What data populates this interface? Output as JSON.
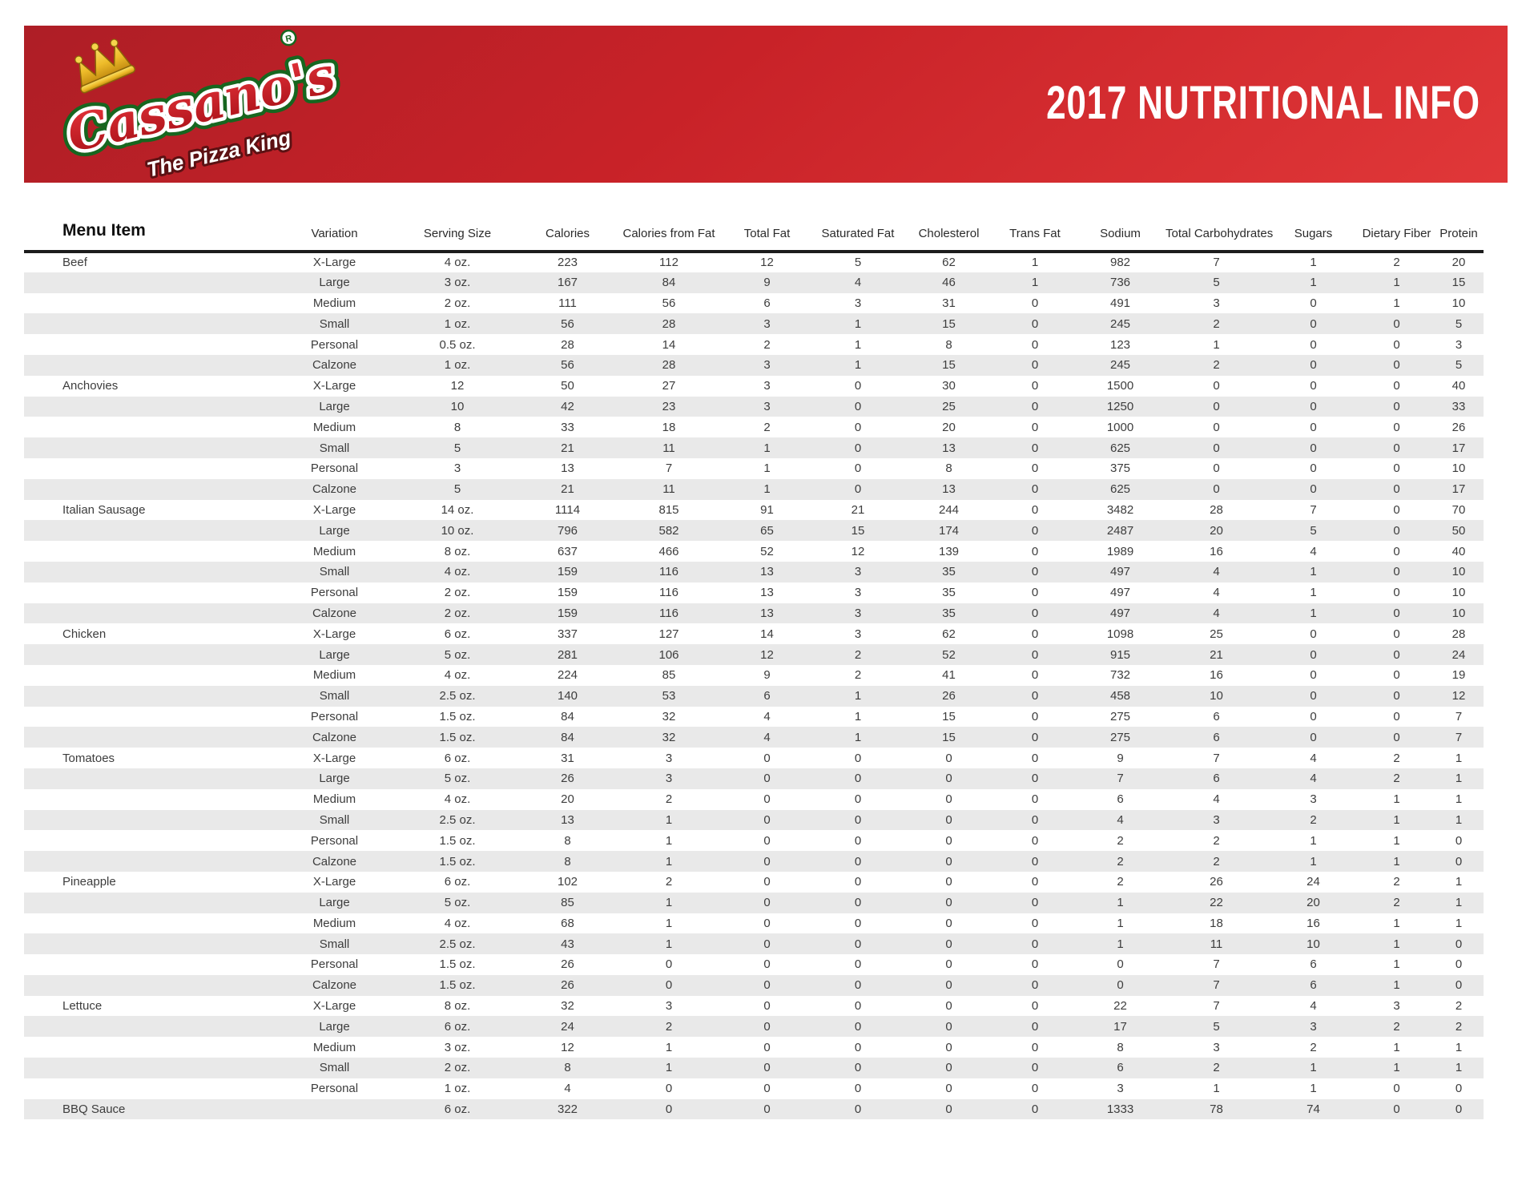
{
  "header": {
    "title": "2017 NUTRITIONAL INFO",
    "logo": {
      "brand": "Cassano's",
      "tagline": "The Pizza King",
      "registered_mark": "R"
    }
  },
  "colors": {
    "banner_red": "#c82228",
    "logo_green": "#1e7a24",
    "logo_red": "#c4161c",
    "crown_gold": "#eebc2a",
    "row_stripe": "#e9e9e9",
    "header_rule": "#1c1c1c",
    "body_text": "#3d3d3d"
  },
  "table": {
    "columns": [
      "Menu Item",
      "Variation",
      "Serving Size",
      "Calories",
      "Calories from Fat",
      "Total Fat",
      "Saturated Fat",
      "Cholesterol",
      "Trans Fat",
      "Sodium",
      "Total Carbohydrates",
      "Sugars",
      "Dietary Fiber",
      "Protein"
    ],
    "rows": [
      [
        "Beef",
        "X-Large",
        "4 oz.",
        "223",
        "112",
        "12",
        "5",
        "62",
        "1",
        "982",
        "7",
        "1",
        "2",
        "20"
      ],
      [
        "",
        "Large",
        "3 oz.",
        "167",
        "84",
        "9",
        "4",
        "46",
        "1",
        "736",
        "5",
        "1",
        "1",
        "15"
      ],
      [
        "",
        "Medium",
        "2 oz.",
        "111",
        "56",
        "6",
        "3",
        "31",
        "0",
        "491",
        "3",
        "0",
        "1",
        "10"
      ],
      [
        "",
        "Small",
        "1 oz.",
        "56",
        "28",
        "3",
        "1",
        "15",
        "0",
        "245",
        "2",
        "0",
        "0",
        "5"
      ],
      [
        "",
        "Personal",
        "0.5 oz.",
        "28",
        "14",
        "2",
        "1",
        "8",
        "0",
        "123",
        "1",
        "0",
        "0",
        "3"
      ],
      [
        "",
        "Calzone",
        "1 oz.",
        "56",
        "28",
        "3",
        "1",
        "15",
        "0",
        "245",
        "2",
        "0",
        "0",
        "5"
      ],
      [
        "Anchovies",
        "X-Large",
        "12",
        "50",
        "27",
        "3",
        "0",
        "30",
        "0",
        "1500",
        "0",
        "0",
        "0",
        "40"
      ],
      [
        "",
        "Large",
        "10",
        "42",
        "23",
        "3",
        "0",
        "25",
        "0",
        "1250",
        "0",
        "0",
        "0",
        "33"
      ],
      [
        "",
        "Medium",
        "8",
        "33",
        "18",
        "2",
        "0",
        "20",
        "0",
        "1000",
        "0",
        "0",
        "0",
        "26"
      ],
      [
        "",
        "Small",
        "5",
        "21",
        "11",
        "1",
        "0",
        "13",
        "0",
        "625",
        "0",
        "0",
        "0",
        "17"
      ],
      [
        "",
        "Personal",
        "3",
        "13",
        "7",
        "1",
        "0",
        "8",
        "0",
        "375",
        "0",
        "0",
        "0",
        "10"
      ],
      [
        "",
        "Calzone",
        "5",
        "21",
        "11",
        "1",
        "0",
        "13",
        "0",
        "625",
        "0",
        "0",
        "0",
        "17"
      ],
      [
        "Italian Sausage",
        "X-Large",
        "14 oz.",
        "1114",
        "815",
        "91",
        "21",
        "244",
        "0",
        "3482",
        "28",
        "7",
        "0",
        "70"
      ],
      [
        "",
        "Large",
        "10 oz.",
        "796",
        "582",
        "65",
        "15",
        "174",
        "0",
        "2487",
        "20",
        "5",
        "0",
        "50"
      ],
      [
        "",
        "Medium",
        "8 oz.",
        "637",
        "466",
        "52",
        "12",
        "139",
        "0",
        "1989",
        "16",
        "4",
        "0",
        "40"
      ],
      [
        "",
        "Small",
        "4 oz.",
        "159",
        "116",
        "13",
        "3",
        "35",
        "0",
        "497",
        "4",
        "1",
        "0",
        "10"
      ],
      [
        "",
        "Personal",
        "2 oz.",
        "159",
        "116",
        "13",
        "3",
        "35",
        "0",
        "497",
        "4",
        "1",
        "0",
        "10"
      ],
      [
        "",
        "Calzone",
        "2 oz.",
        "159",
        "116",
        "13",
        "3",
        "35",
        "0",
        "497",
        "4",
        "1",
        "0",
        "10"
      ],
      [
        "Chicken",
        "X-Large",
        "6 oz.",
        "337",
        "127",
        "14",
        "3",
        "62",
        "0",
        "1098",
        "25",
        "0",
        "0",
        "28"
      ],
      [
        "",
        "Large",
        "5 oz.",
        "281",
        "106",
        "12",
        "2",
        "52",
        "0",
        "915",
        "21",
        "0",
        "0",
        "24"
      ],
      [
        "",
        "Medium",
        "4 oz.",
        "224",
        "85",
        "9",
        "2",
        "41",
        "0",
        "732",
        "16",
        "0",
        "0",
        "19"
      ],
      [
        "",
        "Small",
        "2.5 oz.",
        "140",
        "53",
        "6",
        "1",
        "26",
        "0",
        "458",
        "10",
        "0",
        "0",
        "12"
      ],
      [
        "",
        "Personal",
        "1.5 oz.",
        "84",
        "32",
        "4",
        "1",
        "15",
        "0",
        "275",
        "6",
        "0",
        "0",
        "7"
      ],
      [
        "",
        "Calzone",
        "1.5 oz.",
        "84",
        "32",
        "4",
        "1",
        "15",
        "0",
        "275",
        "6",
        "0",
        "0",
        "7"
      ],
      [
        "Tomatoes",
        "X-Large",
        "6 oz.",
        "31",
        "3",
        "0",
        "0",
        "0",
        "0",
        "9",
        "7",
        "4",
        "2",
        "1"
      ],
      [
        "",
        "Large",
        "5 oz.",
        "26",
        "3",
        "0",
        "0",
        "0",
        "0",
        "7",
        "6",
        "4",
        "2",
        "1"
      ],
      [
        "",
        "Medium",
        "4 oz.",
        "20",
        "2",
        "0",
        "0",
        "0",
        "0",
        "6",
        "4",
        "3",
        "1",
        "1"
      ],
      [
        "",
        "Small",
        "2.5 oz.",
        "13",
        "1",
        "0",
        "0",
        "0",
        "0",
        "4",
        "3",
        "2",
        "1",
        "1"
      ],
      [
        "",
        "Personal",
        "1.5 oz.",
        "8",
        "1",
        "0",
        "0",
        "0",
        "0",
        "2",
        "2",
        "1",
        "1",
        "0"
      ],
      [
        "",
        "Calzone",
        "1.5 oz.",
        "8",
        "1",
        "0",
        "0",
        "0",
        "0",
        "2",
        "2",
        "1",
        "1",
        "0"
      ],
      [
        "Pineapple",
        "X-Large",
        "6 oz.",
        "102",
        "2",
        "0",
        "0",
        "0",
        "0",
        "2",
        "26",
        "24",
        "2",
        "1"
      ],
      [
        "",
        "Large",
        "5 oz.",
        "85",
        "1",
        "0",
        "0",
        "0",
        "0",
        "1",
        "22",
        "20",
        "2",
        "1"
      ],
      [
        "",
        "Medium",
        "4 oz.",
        "68",
        "1",
        "0",
        "0",
        "0",
        "0",
        "1",
        "18",
        "16",
        "1",
        "1"
      ],
      [
        "",
        "Small",
        "2.5 oz.",
        "43",
        "1",
        "0",
        "0",
        "0",
        "0",
        "1",
        "11",
        "10",
        "1",
        "0"
      ],
      [
        "",
        "Personal",
        "1.5 oz.",
        "26",
        "0",
        "0",
        "0",
        "0",
        "0",
        "0",
        "7",
        "6",
        "1",
        "0"
      ],
      [
        "",
        "Calzone",
        "1.5 oz.",
        "26",
        "0",
        "0",
        "0",
        "0",
        "0",
        "0",
        "7",
        "6",
        "1",
        "0"
      ],
      [
        "Lettuce",
        "X-Large",
        "8 oz.",
        "32",
        "3",
        "0",
        "0",
        "0",
        "0",
        "22",
        "7",
        "4",
        "3",
        "2"
      ],
      [
        "",
        "Large",
        "6 oz.",
        "24",
        "2",
        "0",
        "0",
        "0",
        "0",
        "17",
        "5",
        "3",
        "2",
        "2"
      ],
      [
        "",
        "Medium",
        "3 oz.",
        "12",
        "1",
        "0",
        "0",
        "0",
        "0",
        "8",
        "3",
        "2",
        "1",
        "1"
      ],
      [
        "",
        "Small",
        "2 oz.",
        "8",
        "1",
        "0",
        "0",
        "0",
        "0",
        "6",
        "2",
        "1",
        "1",
        "1"
      ],
      [
        "",
        "Personal",
        "1 oz.",
        "4",
        "0",
        "0",
        "0",
        "0",
        "0",
        "3",
        "1",
        "1",
        "0",
        "0"
      ],
      [
        "BBQ Sauce",
        "",
        "6 oz.",
        "322",
        "0",
        "0",
        "0",
        "0",
        "0",
        "1333",
        "78",
        "74",
        "0",
        "0"
      ]
    ]
  }
}
